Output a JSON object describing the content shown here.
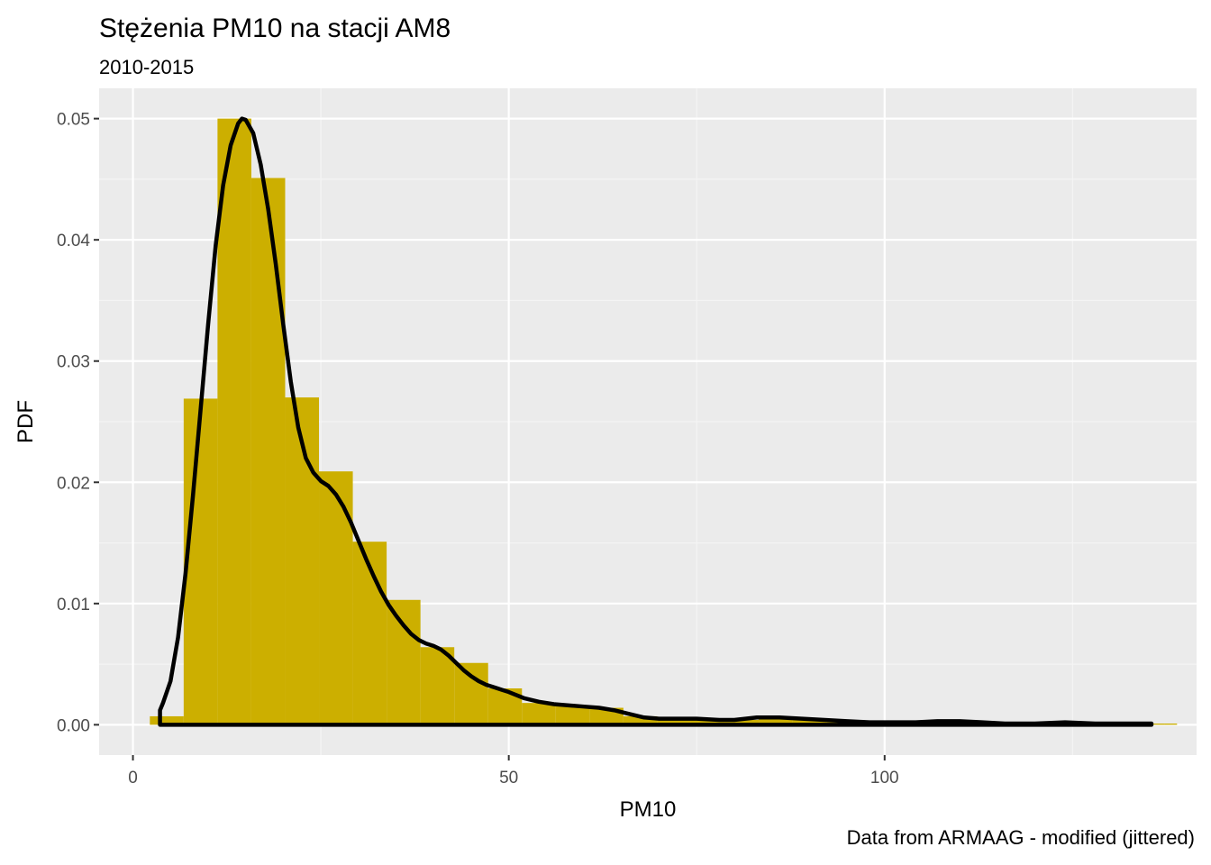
{
  "chart_data": {
    "type": "bar",
    "title": "Stężenia PM10 na stacji AM8",
    "subtitle": "2010-2015",
    "xlabel": "PM10",
    "ylabel": "PDF",
    "caption": "Data from ARMAAG - modified (jittered)",
    "xlim": [
      -4.5,
      141.5
    ],
    "ylim": [
      -0.0025,
      0.0525
    ],
    "x_ticks": [
      0,
      50,
      100
    ],
    "x_tick_labels": [
      "0",
      "50",
      "100"
    ],
    "y_ticks": [
      0,
      0.01,
      0.02,
      0.03,
      0.04,
      0.05
    ],
    "y_tick_labels": [
      "0.00",
      "0.01",
      "0.02",
      "0.03",
      "0.04",
      "0.05"
    ],
    "grid": true,
    "bin_width": 4.5,
    "bins": [
      {
        "x0": 2.25,
        "x1": 6.75,
        "value": 0.0007
      },
      {
        "x0": 6.75,
        "x1": 11.25,
        "value": 0.0269
      },
      {
        "x0": 11.25,
        "x1": 15.75,
        "value": 0.05
      },
      {
        "x0": 15.75,
        "x1": 20.25,
        "value": 0.0451
      },
      {
        "x0": 20.25,
        "x1": 24.75,
        "value": 0.027
      },
      {
        "x0": 24.75,
        "x1": 29.25,
        "value": 0.0209
      },
      {
        "x0": 29.25,
        "x1": 33.75,
        "value": 0.0151
      },
      {
        "x0": 33.75,
        "x1": 38.25,
        "value": 0.0103
      },
      {
        "x0": 38.25,
        "x1": 42.75,
        "value": 0.0064
      },
      {
        "x0": 42.75,
        "x1": 47.25,
        "value": 0.0051
      },
      {
        "x0": 47.25,
        "x1": 51.75,
        "value": 0.003
      },
      {
        "x0": 51.75,
        "x1": 56.25,
        "value": 0.0018
      },
      {
        "x0": 56.25,
        "x1": 60.75,
        "value": 0.0016
      },
      {
        "x0": 60.75,
        "x1": 65.25,
        "value": 0.0014
      },
      {
        "x0": 65.25,
        "x1": 69.75,
        "value": 0.0007
      },
      {
        "x0": 69.75,
        "x1": 74.25,
        "value": 0.0005
      },
      {
        "x0": 74.25,
        "x1": 78.75,
        "value": 0.0004
      },
      {
        "x0": 78.75,
        "x1": 83.25,
        "value": 0.0004
      },
      {
        "x0": 83.25,
        "x1": 87.75,
        "value": 0.0006
      },
      {
        "x0": 87.75,
        "x1": 92.25,
        "value": 0.0005
      },
      {
        "x0": 92.25,
        "x1": 96.75,
        "value": 0.0003
      },
      {
        "x0": 96.75,
        "x1": 101.25,
        "value": 0.0002
      },
      {
        "x0": 101.25,
        "x1": 105.75,
        "value": 0.0002
      },
      {
        "x0": 105.75,
        "x1": 110.25,
        "value": 0.0003
      },
      {
        "x0": 110.25,
        "x1": 114.75,
        "value": 0.0002
      },
      {
        "x0": 114.75,
        "x1": 119.25,
        "value": 0.0001
      },
      {
        "x0": 119.25,
        "x1": 123.75,
        "value": 0.0002
      },
      {
        "x0": 123.75,
        "x1": 128.25,
        "value": 0.0001
      },
      {
        "x0": 128.25,
        "x1": 132.75,
        "value": 0.0001
      },
      {
        "x0": 132.75,
        "x1": 137.25,
        "value": 0.0001
      },
      {
        "x0": 137.25,
        "x1": 138.9,
        "value": 0.0001
      }
    ],
    "density": {
      "x": [
        3.6,
        4.0,
        5.0,
        6.0,
        7.0,
        8.0,
        9.0,
        10.0,
        11.0,
        12.0,
        13.0,
        14.0,
        14.5,
        15.0,
        16.0,
        17.0,
        18.0,
        19.0,
        20.0,
        21.0,
        22.0,
        23.0,
        24.0,
        25.0,
        26.0,
        27.0,
        28.0,
        29.0,
        30.0,
        31.0,
        32.0,
        33.0,
        34.0,
        35.0,
        36.0,
        37.0,
        38.0,
        39.0,
        40.0,
        41.0,
        42.0,
        43.0,
        44.0,
        45.0,
        46.0,
        47.0,
        48.0,
        49.0,
        50.0,
        52.0,
        54.0,
        56.0,
        58.0,
        60.0,
        62.0,
        64.0,
        66.0,
        68.0,
        70.0,
        72.0,
        75.0,
        78.0,
        80.0,
        83.0,
        86.0,
        89.0,
        92.0,
        95.0,
        98.0,
        101.0,
        104.0,
        107.0,
        110.0,
        113.0,
        116.0,
        120.0,
        124.0,
        128.0,
        132.0,
        135.5
      ],
      "y": [
        0.0012,
        0.0018,
        0.0036,
        0.0072,
        0.0125,
        0.019,
        0.026,
        0.033,
        0.0395,
        0.0445,
        0.0478,
        0.0496,
        0.05,
        0.0499,
        0.0488,
        0.0462,
        0.0425,
        0.038,
        0.033,
        0.0283,
        0.0245,
        0.022,
        0.0208,
        0.0201,
        0.0197,
        0.019,
        0.018,
        0.0167,
        0.0152,
        0.0137,
        0.0123,
        0.011,
        0.0099,
        0.009,
        0.0082,
        0.0075,
        0.007,
        0.0067,
        0.0065,
        0.0062,
        0.0057,
        0.0051,
        0.0045,
        0.004,
        0.0036,
        0.0033,
        0.0031,
        0.0029,
        0.0027,
        0.0022,
        0.0019,
        0.0017,
        0.0016,
        0.0015,
        0.0014,
        0.0012,
        0.0009,
        0.0006,
        0.0005,
        0.0005,
        0.0005,
        0.0004,
        0.0004,
        0.0006,
        0.0006,
        0.0005,
        0.0004,
        0.0003,
        0.0002,
        0.0002,
        0.0002,
        0.0003,
        0.0003,
        0.0002,
        0.0001,
        0.0001,
        0.0002,
        0.0001,
        0.0001,
        0.0001
      ]
    },
    "colors": {
      "bar_fill": "#CCAF00",
      "density_line": "#000000",
      "panel_bg": "#EBEBEB",
      "grid_major": "#FFFFFF",
      "grid_minor": "#F4F4F4",
      "tick_text": "#4D4D4D"
    }
  }
}
